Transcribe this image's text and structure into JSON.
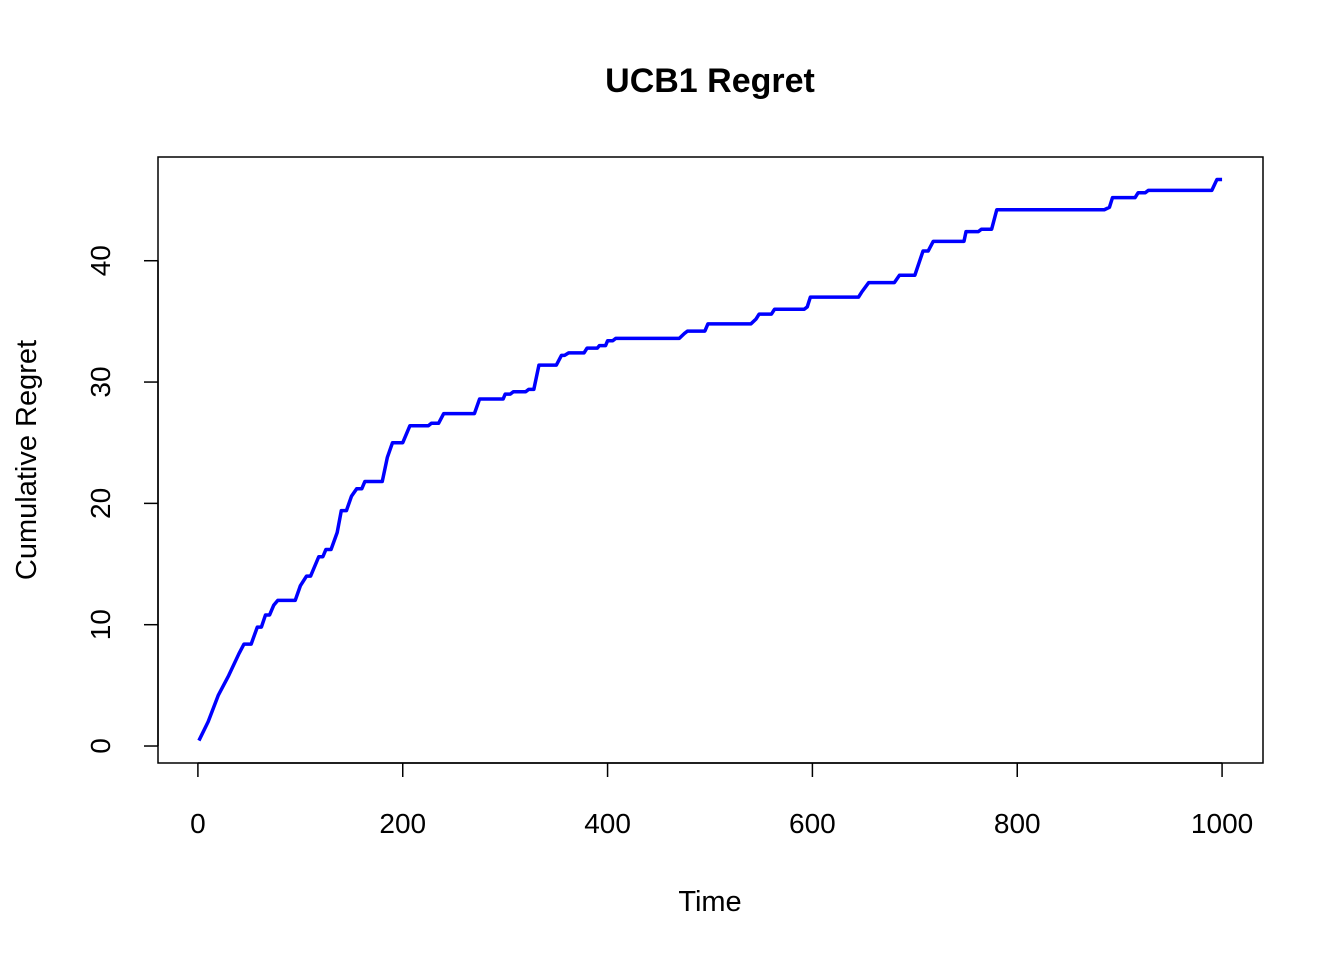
{
  "chart_data": {
    "type": "line",
    "title": "UCB1 Regret",
    "x_label": "Time",
    "y_label": "Cumulative Regret",
    "color": "#0000ff",
    "line_width": 3.5,
    "x": [
      1,
      10,
      20,
      30,
      40,
      45,
      52,
      58,
      62,
      66,
      70,
      74,
      78,
      95,
      100,
      106,
      110,
      118,
      122,
      125,
      130,
      136,
      140,
      145,
      150,
      155,
      160,
      163,
      180,
      185,
      190,
      200,
      207,
      225,
      228,
      235,
      240,
      270,
      275,
      298,
      300,
      305,
      308,
      320,
      323,
      328,
      333,
      350,
      355,
      358,
      362,
      377,
      380,
      390,
      392,
      398,
      400,
      405,
      408,
      470,
      475,
      478,
      495,
      498,
      540,
      545,
      548,
      560,
      563,
      592,
      595,
      598,
      640,
      645,
      648,
      655,
      680,
      685,
      700,
      708,
      713,
      718,
      748,
      750,
      762,
      765,
      775,
      780,
      885,
      890,
      893,
      915,
      918,
      925,
      928,
      990,
      995,
      1000
    ],
    "values": [
      0.45,
      2,
      4.2,
      5.8,
      7.6,
      8.4,
      8.4,
      9.8,
      9.8,
      10.8,
      10.8,
      11.6,
      12,
      12,
      13.2,
      14,
      14,
      15.6,
      15.6,
      16.2,
      16.2,
      17.6,
      19.4,
      19.4,
      20.6,
      21.2,
      21.2,
      21.8,
      21.8,
      23.8,
      25,
      25,
      26.4,
      26.4,
      26.6,
      26.6,
      27.4,
      27.4,
      28.6,
      28.6,
      29,
      29,
      29.2,
      29.2,
      29.4,
      29.4,
      31.4,
      31.4,
      32.2,
      32.2,
      32.4,
      32.4,
      32.8,
      32.8,
      33,
      33,
      33.4,
      33.4,
      33.6,
      33.6,
      34,
      34.2,
      34.2,
      34.8,
      34.8,
      35.2,
      35.6,
      35.6,
      36,
      36,
      36.2,
      37,
      37,
      37,
      37.4,
      38.2,
      38.2,
      38.8,
      38.8,
      40.8,
      40.8,
      41.6,
      41.6,
      42.4,
      42.4,
      42.6,
      42.6,
      44.2,
      44.2,
      44.4,
      45.2,
      45.2,
      45.6,
      45.6,
      45.8,
      45.8,
      46.7,
      46.7
    ],
    "xlim": [
      -38.96,
      1039.96
    ],
    "ylim": [
      -1.4,
      48.55
    ],
    "xticks": [
      0,
      200,
      400,
      600,
      800,
      1000
    ],
    "yticks": [
      0,
      10,
      20,
      30,
      40
    ]
  }
}
